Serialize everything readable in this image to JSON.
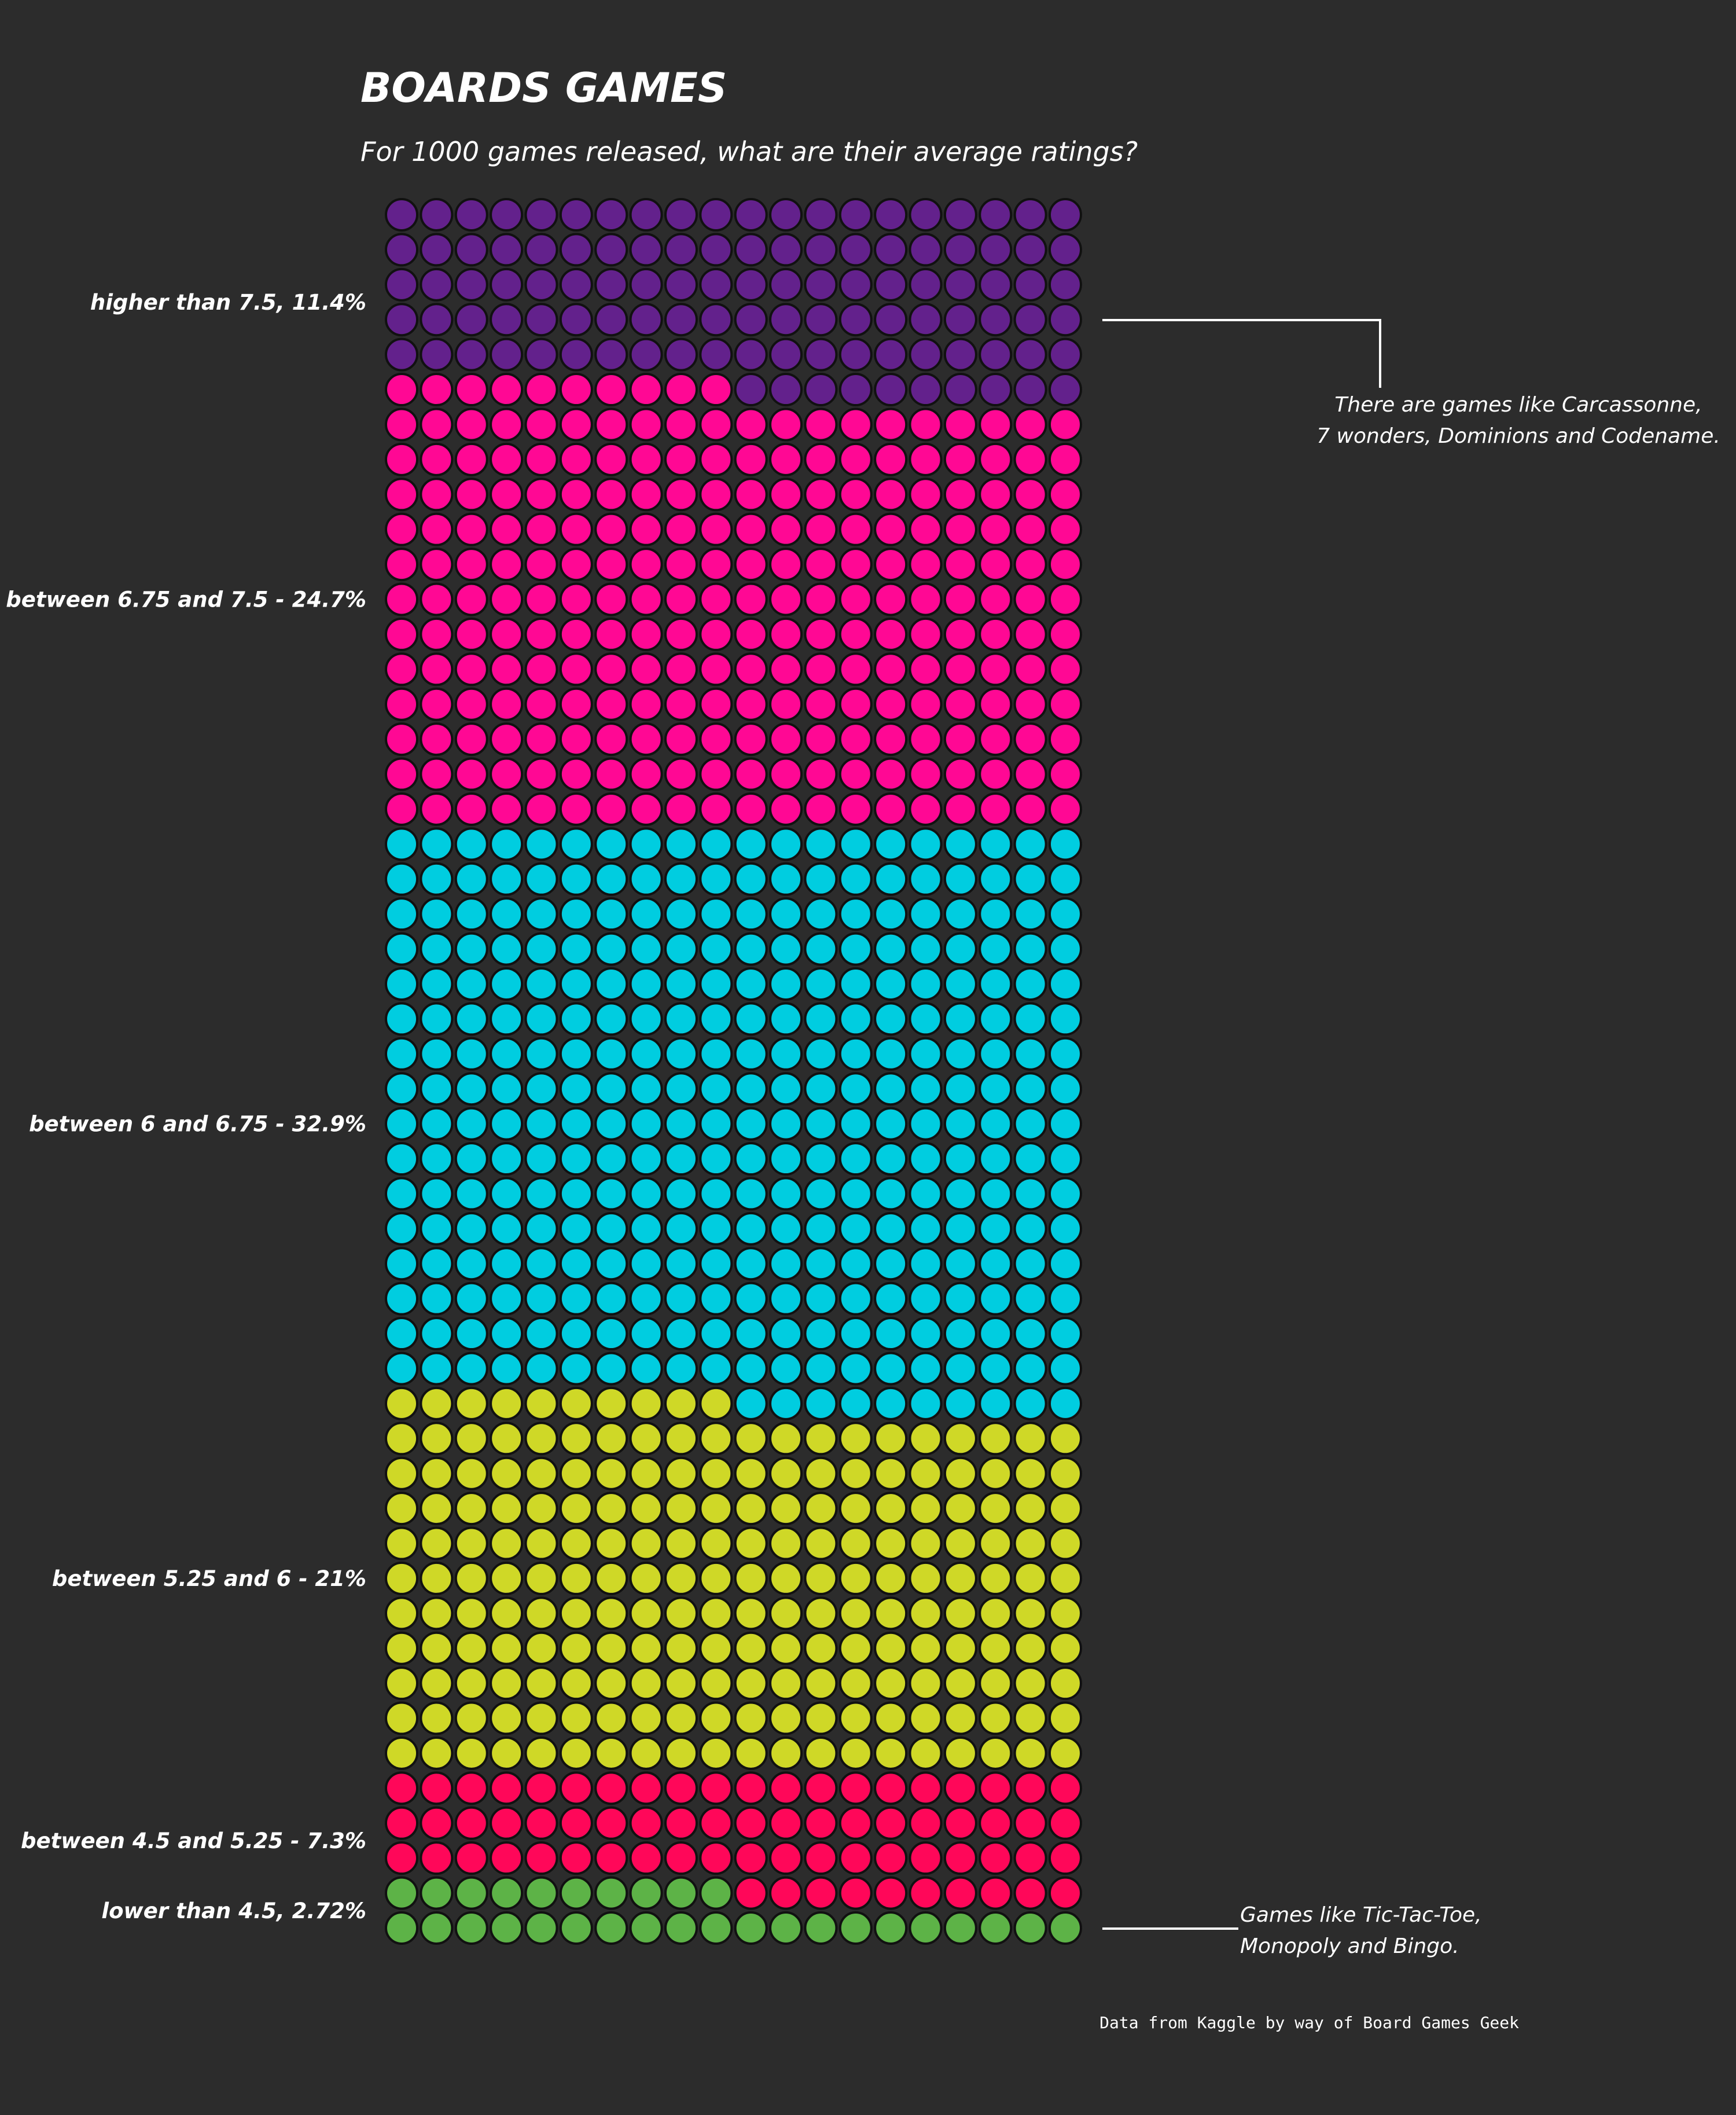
{
  "chart_data": {
    "type": "waffle",
    "title": "BOARDS GAMES",
    "subtitle": "For 1000 games released, what are their average ratings?",
    "grid": {
      "columns": 20,
      "rows": 50,
      "total": 1000,
      "fill_order": "bottom-up"
    },
    "categories": [
      {
        "label": "lower than 4.5, 2.72%",
        "count": 30,
        "color": "#5db347"
      },
      {
        "label": "between 4.5 and 5.25 - 7.3%",
        "count": 70,
        "color": "#ff0759"
      },
      {
        "label": "between 5.25 and 6 - 21%",
        "count": 210,
        "color": "#cfd827"
      },
      {
        "label": "between 6 and 6.75 - 32.9%",
        "count": 330,
        "color": "#00cde0"
      },
      {
        "label": "between 6.75 and 7.5 - 24.7%",
        "count": 250,
        "color": "#ff0894"
      },
      {
        "label": "higher than 7.5, 11.4%",
        "count": 110,
        "color": "#63218c"
      }
    ],
    "annotations": [
      {
        "lines": [
          "There are games like Carcassonne,",
          "7 wonders, Dominions and Codename."
        ]
      },
      {
        "lines": [
          "Games like Tic-Tac-Toe,",
          "Monopoly and Bingo."
        ]
      }
    ],
    "caption": "Data from  Kaggle by way of Board Games Geek"
  }
}
